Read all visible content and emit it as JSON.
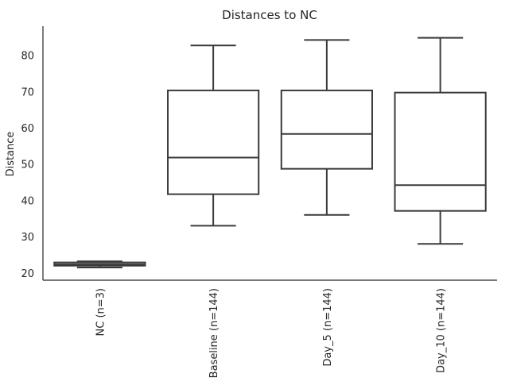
{
  "chart_data": {
    "type": "box",
    "title": "Distances to NC",
    "xlabel": "",
    "ylabel": "Distance",
    "ylim": [
      18,
      88
    ],
    "yticks": [
      20,
      30,
      40,
      50,
      60,
      70,
      80
    ],
    "grid": false,
    "legend": "none",
    "color": "#3a3a3a",
    "categories": [
      "NC (n=3)",
      "Baseline (n=144)",
      "Day_5 (n=144)",
      "Day_10 (n=144)"
    ],
    "boxes": [
      {
        "min": 21.5,
        "q1": 22.0,
        "median": 22.4,
        "q3": 22.9,
        "max": 23.2
      },
      {
        "min": 33.0,
        "q1": 41.7,
        "median": 51.8,
        "q3": 70.3,
        "max": 82.7
      },
      {
        "min": 36.0,
        "q1": 48.7,
        "median": 58.3,
        "q3": 70.3,
        "max": 84.2
      },
      {
        "min": 28.0,
        "q1": 37.1,
        "median": 44.2,
        "q3": 69.7,
        "max": 84.8
      }
    ]
  }
}
